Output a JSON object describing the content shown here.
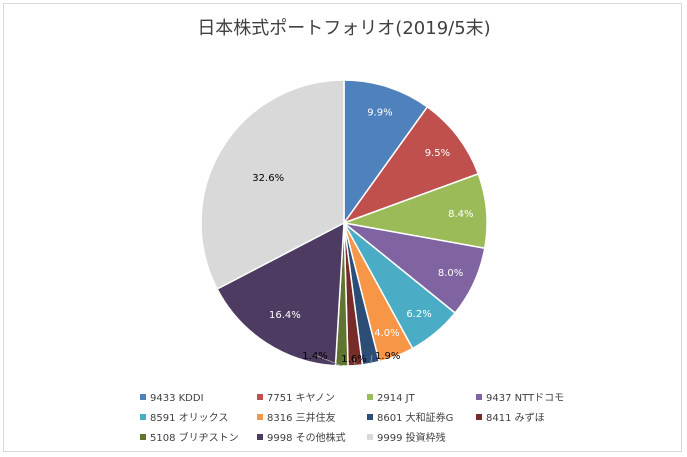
{
  "chart_data": {
    "type": "pie",
    "title": "日本株式ポートフォリオ(2019/5末)",
    "legend_position": "bottom",
    "slices": [
      {
        "name": "9433 KDDI",
        "value": 9.9,
        "label": "9.9%",
        "color": "#4f81bd"
      },
      {
        "name": "7751 キヤノン",
        "value": 9.5,
        "label": "9.5%",
        "color": "#c0504d"
      },
      {
        "name": "2914 JT",
        "value": 8.4,
        "label": "8.4%",
        "color": "#9bbb59"
      },
      {
        "name": "9437 NTTドコモ",
        "value": 8.0,
        "label": "8.0%",
        "color": "#8064a2"
      },
      {
        "name": "8591 オリックス",
        "value": 6.2,
        "label": "6.2%",
        "color": "#4bacc6"
      },
      {
        "name": "8316 三井住友",
        "value": 4.0,
        "label": "4.0%",
        "color": "#f79646"
      },
      {
        "name": "8601 大和証券G",
        "value": 1.9,
        "label": "1.9%",
        "color": "#2c4d75"
      },
      {
        "name": "8411 みずほ",
        "value": 1.6,
        "label": "1.6%",
        "color": "#772c2a"
      },
      {
        "name": "5108 ブリヂストン",
        "value": 1.4,
        "label": "1.4%",
        "color": "#5f7530"
      },
      {
        "name": "9998 その他株式",
        "value": 16.4,
        "label": "16.4%",
        "color": "#4d3b62"
      },
      {
        "name": "9999 投資枠残",
        "value": 32.6,
        "label": "32.6%",
        "color": "#d9d9d9"
      }
    ]
  }
}
